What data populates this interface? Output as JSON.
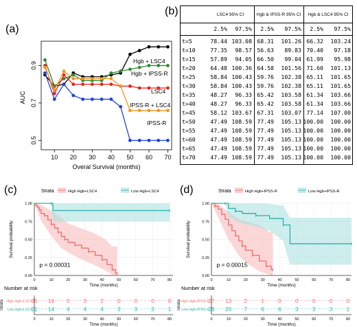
{
  "panel_a": {
    "label": "(a)",
    "chart_data": {
      "type": "line",
      "xlabel": "Overal Survival (months)",
      "ylabel": "AUC",
      "x": [
        5,
        10,
        15,
        20,
        25,
        30,
        35,
        40,
        45,
        50,
        55,
        60,
        65,
        70
      ],
      "xticks": [
        10,
        20,
        30,
        40,
        50,
        60,
        70
      ],
      "yticks": [
        "0.5",
        "0.7",
        "0.9"
      ],
      "xlim": [
        3,
        72
      ],
      "ylim": [
        0.45,
        1.03
      ],
      "series": [
        {
          "name": "Hgb + LSC4",
          "color": "#000000",
          "values": [
            0.85,
            0.79,
            0.8,
            0.86,
            0.84,
            0.84,
            0.84,
            0.85,
            0.86,
            0.96,
            0.98,
            1.0,
            1.0,
            1.0
          ]
        },
        {
          "name": "Hgb + IPSS-R",
          "color": "#2e8b2e",
          "values": [
            0.93,
            0.79,
            0.83,
            0.85,
            0.82,
            0.82,
            0.82,
            0.86,
            0.87,
            0.88,
            0.89,
            0.9,
            0.9,
            0.9
          ]
        },
        {
          "name": "LSC4",
          "color": "#e8201a",
          "values": [
            0.9,
            0.75,
            0.85,
            0.8,
            0.8,
            0.8,
            0.8,
            0.8,
            0.79,
            0.79,
            0.78,
            0.78,
            0.78,
            0.78
          ]
        },
        {
          "name": "IPSS-R + LSC4",
          "color": "#f7941d",
          "values": [
            0.89,
            0.77,
            0.87,
            0.83,
            0.83,
            0.83,
            0.83,
            0.83,
            0.79,
            0.66,
            0.66,
            0.66,
            0.66,
            0.66
          ]
        },
        {
          "name": "IPSS-R",
          "color": "#1f3fe0",
          "values": [
            0.86,
            0.72,
            0.8,
            0.74,
            0.72,
            0.72,
            0.72,
            0.72,
            0.68,
            0.5,
            0.5,
            0.5,
            0.5,
            0.5
          ]
        }
      ]
    }
  },
  "panel_b": {
    "label": "(b)",
    "chart_data": {
      "type": "table",
      "headers": [
        "LSC4 95% CI",
        "Hgb & IPSS-R 95% CI",
        "Hgb & LSC4 95% CI"
      ],
      "subheaders": [
        "2.5%",
        "97.5%"
      ],
      "rows": [
        {
          "t": "t=5",
          "v": [
            "78.44",
            "103.08",
            "68.31",
            "101.26",
            "66.32",
            "103.24"
          ]
        },
        {
          "t": "t=10",
          "v": [
            "77.35",
            "98.57",
            "56.63",
            "89.83",
            "70.40",
            "97.18"
          ]
        },
        {
          "t": "t=15",
          "v": [
            "57.89",
            "94.05",
            "66.50",
            "99.04",
            "61.99",
            "95.98"
          ]
        },
        {
          "t": "t=20",
          "v": [
            "64.48",
            "100.36",
            "64.58",
            "101.56",
            "71.60",
            "101.13"
          ]
        },
        {
          "t": "t=25",
          "v": [
            "58.84",
            "100.43",
            "59.76",
            "102.38",
            "65.11",
            "101.65"
          ]
        },
        {
          "t": "t=30",
          "v": [
            "58.84",
            "100.43",
            "59.76",
            "102.38",
            "65.11",
            "101.65"
          ]
        },
        {
          "t": "t=35",
          "v": [
            "48.27",
            "96.33",
            "65.42",
            "103.58",
            "61.34",
            "103.66"
          ]
        },
        {
          "t": "t=40",
          "v": [
            "48.27",
            "96.33",
            "65.42",
            "103.58",
            "61.34",
            "103.66"
          ]
        },
        {
          "t": "t=45",
          "v": [
            "58.12",
            "103.67",
            "67.31",
            "103.07",
            "77.14",
            "107.00"
          ]
        },
        {
          "t": "t=50",
          "v": [
            "47.49",
            "108.59",
            "77.49",
            "105.13",
            "100.00",
            "100.00"
          ]
        },
        {
          "t": "t=55",
          "v": [
            "47.49",
            "108.59",
            "77.49",
            "105.13",
            "100.00",
            "100.00"
          ]
        },
        {
          "t": "t=60",
          "v": [
            "47.49",
            "108.59",
            "77.49",
            "105.13",
            "100.00",
            "100.00"
          ]
        },
        {
          "t": "t=65",
          "v": [
            "47.49",
            "108.59",
            "77.49",
            "105.13",
            "100.00",
            "100.00"
          ]
        },
        {
          "t": "t=70",
          "v": [
            "47.49",
            "108.59",
            "77.49",
            "105.13",
            "100.00",
            "100.00"
          ]
        }
      ]
    }
  },
  "panel_c": {
    "label": "(c)",
    "chart_data": {
      "type": "line",
      "strata_title": "Strata",
      "ylabel": "Survival probability",
      "xlabel": "Time (months)",
      "xticks": [
        "0",
        "10",
        "20",
        "30",
        "40",
        "50",
        "60",
        "70",
        "80"
      ],
      "yticks": [
        "0.00",
        "0.25",
        "0.50",
        "0.75",
        "1.00"
      ],
      "xlim": [
        0,
        82
      ],
      "ylim": [
        0,
        1
      ],
      "pvalue": "p = 0.00031",
      "series": [
        {
          "name": "High Hgb+LSC4",
          "color": "#f06b6b",
          "band": "#f7b6b6",
          "steps": [
            [
              0,
              1.0
            ],
            [
              1,
              0.97
            ],
            [
              2,
              0.94
            ],
            [
              3,
              0.91
            ],
            [
              4,
              0.86
            ],
            [
              6,
              0.83
            ],
            [
              8,
              0.77
            ],
            [
              10,
              0.71
            ],
            [
              12,
              0.66
            ],
            [
              14,
              0.6
            ],
            [
              16,
              0.54
            ],
            [
              18,
              0.5
            ],
            [
              20,
              0.46
            ],
            [
              24,
              0.42
            ],
            [
              28,
              0.38
            ],
            [
              32,
              0.33
            ],
            [
              36,
              0.28
            ],
            [
              40,
              0.22
            ],
            [
              43,
              0.15
            ],
            [
              46,
              0.08
            ],
            [
              48,
              0.03
            ],
            [
              49,
              0.03
            ]
          ],
          "upper": [
            [
              0,
              1.0
            ],
            [
              4,
              0.98
            ],
            [
              10,
              0.9
            ],
            [
              16,
              0.8
            ],
            [
              20,
              0.72
            ],
            [
              28,
              0.65
            ],
            [
              36,
              0.58
            ],
            [
              42,
              0.5
            ],
            [
              46,
              0.4
            ],
            [
              49,
              0.4
            ]
          ],
          "lower": [
            [
              0,
              1.0
            ],
            [
              4,
              0.76
            ],
            [
              10,
              0.55
            ],
            [
              16,
              0.38
            ],
            [
              20,
              0.32
            ],
            [
              28,
              0.22
            ],
            [
              36,
              0.14
            ],
            [
              42,
              0.07
            ],
            [
              46,
              0.01
            ],
            [
              49,
              0.0
            ]
          ]
        },
        {
          "name": "Low Hgb+LSC4",
          "color": "#27b0b0",
          "band": "#a6dede",
          "steps": [
            [
              0,
              1.0
            ],
            [
              10,
              1.0
            ],
            [
              11,
              0.9
            ],
            [
              80,
              0.9
            ]
          ],
          "upper": [
            [
              0,
              1.0
            ],
            [
              80,
              1.0
            ]
          ],
          "lower": [
            [
              0,
              1.0
            ],
            [
              10,
              1.0
            ],
            [
              11,
              0.75
            ],
            [
              80,
              0.75
            ]
          ]
        }
      ],
      "risk_title": "Number at risk",
      "risk_ylabel": "Strata",
      "risk_xticks": [
        "0",
        "10",
        "20",
        "30",
        "40",
        "50",
        "60",
        "70",
        "80"
      ],
      "risk": [
        {
          "name": "High Hgb+LSC4",
          "color": "#f06b6b",
          "values": [
            "35",
            "19",
            "5",
            "3",
            "2",
            "0",
            "0",
            "0",
            "0"
          ]
        },
        {
          "name": "Low Hgb+LSC4",
          "color": "#27b0b0",
          "values": [
            "21",
            "14",
            "4",
            "4",
            "4",
            "3",
            "3",
            "3",
            "1"
          ]
        }
      ]
    }
  },
  "panel_d": {
    "label": "(d)",
    "chart_data": {
      "type": "line",
      "strata_title": "Strata",
      "ylabel": "Survival probability",
      "xlabel": "Time (months)",
      "xticks": [
        "0",
        "10",
        "20",
        "30",
        "40",
        "50",
        "60",
        "70",
        "80"
      ],
      "yticks": [
        "0.00",
        "0.25",
        "0.50",
        "0.75",
        "1.00"
      ],
      "xlim": [
        0,
        82
      ],
      "ylim": [
        0,
        1
      ],
      "pvalue": "p = 0.00015",
      "series": [
        {
          "name": "High Hgb+IPSS-R",
          "color": "#f06b6b",
          "band": "#f7b6b6",
          "steps": [
            [
              0,
              1.0
            ],
            [
              2,
              0.96
            ],
            [
              4,
              0.92
            ],
            [
              6,
              0.85
            ],
            [
              8,
              0.78
            ],
            [
              10,
              0.7
            ],
            [
              12,
              0.62
            ],
            [
              14,
              0.55
            ],
            [
              16,
              0.48
            ],
            [
              18,
              0.41
            ],
            [
              20,
              0.35
            ],
            [
              24,
              0.28
            ],
            [
              28,
              0.2
            ],
            [
              32,
              0.13
            ],
            [
              35,
              0.08
            ],
            [
              36,
              0.08
            ]
          ],
          "upper": [
            [
              0,
              1.0
            ],
            [
              4,
              0.99
            ],
            [
              10,
              0.88
            ],
            [
              16,
              0.78
            ],
            [
              20,
              0.75
            ],
            [
              28,
              0.7
            ],
            [
              34,
              0.6
            ],
            [
              36,
              0.6
            ]
          ],
          "lower": [
            [
              0,
              1.0
            ],
            [
              4,
              0.8
            ],
            [
              10,
              0.5
            ],
            [
              16,
              0.28
            ],
            [
              20,
              0.18
            ],
            [
              28,
              0.06
            ],
            [
              34,
              0.01
            ],
            [
              36,
              0.0
            ]
          ]
        },
        {
          "name": "Low Hgb+IPSS-R",
          "color": "#27b0b0",
          "band": "#a6dede",
          "steps": [
            [
              0,
              1.0
            ],
            [
              8,
              1.0
            ],
            [
              10,
              0.93
            ],
            [
              14,
              0.89
            ],
            [
              18,
              0.86
            ],
            [
              26,
              0.83
            ],
            [
              34,
              0.79
            ],
            [
              42,
              0.7
            ],
            [
              46,
              0.44
            ],
            [
              82,
              0.44
            ]
          ],
          "upper": [
            [
              0,
              1.0
            ],
            [
              30,
              1.0
            ],
            [
              42,
              0.97
            ],
            [
              46,
              0.8
            ],
            [
              82,
              0.8
            ]
          ],
          "lower": [
            [
              0,
              1.0
            ],
            [
              8,
              1.0
            ],
            [
              10,
              0.82
            ],
            [
              18,
              0.72
            ],
            [
              26,
              0.68
            ],
            [
              34,
              0.62
            ],
            [
              42,
              0.48
            ],
            [
              46,
              0.15
            ],
            [
              82,
              0.15
            ]
          ]
        }
      ],
      "risk_title": "Number at risk",
      "risk_ylabel": "Strata",
      "risk_xticks": [
        "0",
        "10",
        "20",
        "30",
        "40",
        "50",
        "60",
        "70",
        "80"
      ],
      "risk": [
        {
          "name": "High Hgb+IPSS-R",
          "color": "#f06b6b",
          "values": [
            "27",
            "13",
            "2",
            "1",
            "0",
            "0",
            "0",
            "0",
            "0"
          ]
        },
        {
          "name": "Low Hgb+IPSS-R",
          "color": "#27b0b0",
          "values": [
            "29",
            "20",
            "7",
            "6",
            "6",
            "3",
            "3",
            "3",
            "1"
          ]
        }
      ]
    }
  }
}
